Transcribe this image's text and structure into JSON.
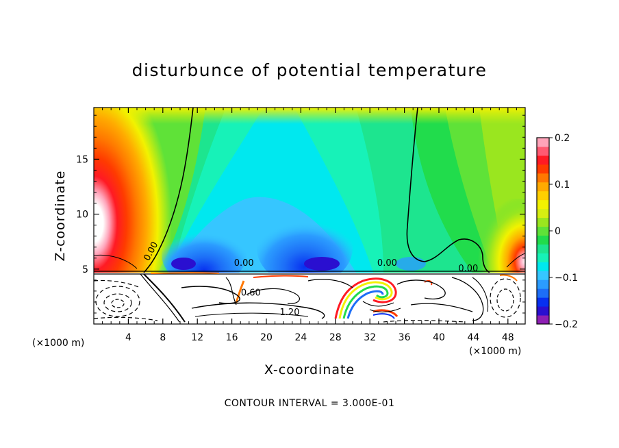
{
  "chart_data": {
    "type": "heatmap",
    "title": "disturbunce of potential temperature",
    "xlabel": "X-coordinate",
    "ylabel": "Z-coordinate",
    "x_unit_left": "(×1000 m)",
    "x_unit_right": "(×1000 m)",
    "x_ticks": [
      4,
      8,
      12,
      16,
      20,
      24,
      28,
      32,
      36,
      40,
      44,
      48
    ],
    "y_ticks": [
      5,
      10,
      15
    ],
    "xlim": [
      0,
      50
    ],
    "ylim": [
      0,
      19.7
    ],
    "colorbar": {
      "range": [
        -0.2,
        0.2
      ],
      "tick_values": [
        0.2,
        0.1,
        0,
        -0.1,
        -0.2
      ],
      "tick_labels": [
        "0.2",
        "0.1",
        "0",
        "−0.1",
        "−0.2"
      ],
      "levels": [
        "#8e1fb4",
        "#2a0fd0",
        "#0730f0",
        "#1d6ef7",
        "#2b9cff",
        "#36c6ff",
        "#00e8ef",
        "#17f2b8",
        "#1de58f",
        "#21dc4c",
        "#5fe238",
        "#9ae61f",
        "#d6ee12",
        "#f2f200",
        "#ffd000",
        "#ffaa00",
        "#ff7800",
        "#ff3b00",
        "#ff1a24",
        "#ff5a72",
        "#ffa4ba"
      ]
    },
    "contour_labels": [
      {
        "text": "0.00",
        "x": 6.9,
        "z": 6.5
      },
      {
        "text": "0.00",
        "x": 17.4,
        "z": 5.3
      },
      {
        "text": "0.00",
        "x": 34.0,
        "z": 5.3
      },
      {
        "text": "0.00",
        "x": 43.4,
        "z": 4.8
      },
      {
        "text": "0.60",
        "x": 18.2,
        "z": 2.6
      },
      {
        "text": "1.20",
        "x": 22.7,
        "z": 0.8
      }
    ],
    "contour_interval_text": "CONTOUR INTERVAL =  3.000E-01"
  }
}
